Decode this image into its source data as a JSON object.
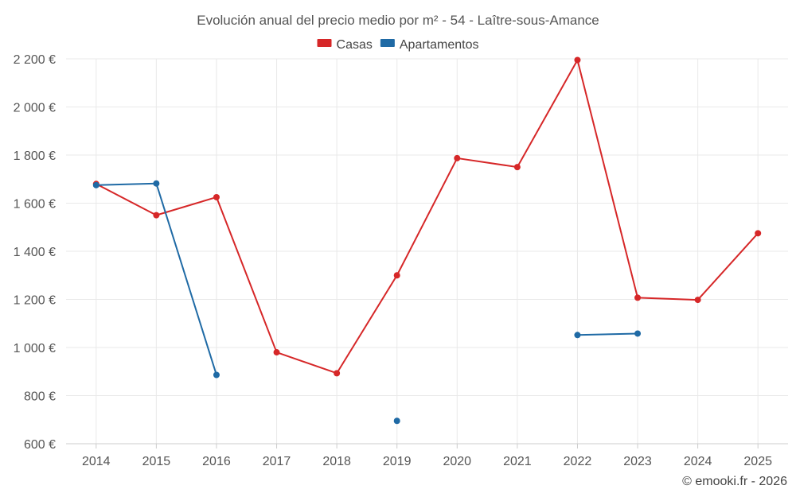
{
  "chart_data": {
    "type": "line",
    "title": "Evolución anual del precio medio por m² - 54 - Laître-sous-Amance",
    "xlabel": "",
    "ylabel": "",
    "categories": [
      "2014",
      "2015",
      "2016",
      "2017",
      "2018",
      "2019",
      "2020",
      "2021",
      "2022",
      "2023",
      "2024",
      "2025"
    ],
    "ylim": [
      600,
      2200
    ],
    "yticks": [
      600,
      800,
      1000,
      1200,
      1400,
      1600,
      1800,
      2000,
      2200
    ],
    "ytick_labels": [
      "600 €",
      "800 €",
      "1 000 €",
      "1 200 €",
      "1 400 €",
      "1 600 €",
      "1 800 €",
      "2 000 €",
      "2 200 €"
    ],
    "grid": true,
    "legend_position": "top-center",
    "series": [
      {
        "name": "Casas",
        "color": "#d62728",
        "values": [
          1680,
          1550,
          1625,
          980,
          893,
          1300,
          1787,
          1750,
          2195,
          1207,
          1198,
          1475
        ]
      },
      {
        "name": "Apartamentos",
        "color": "#1f6aa5",
        "values": [
          1675,
          1682,
          886,
          null,
          null,
          695,
          null,
          null,
          1052,
          1058,
          null,
          null
        ]
      }
    ],
    "credit": "© emooki.fr - 2026"
  }
}
